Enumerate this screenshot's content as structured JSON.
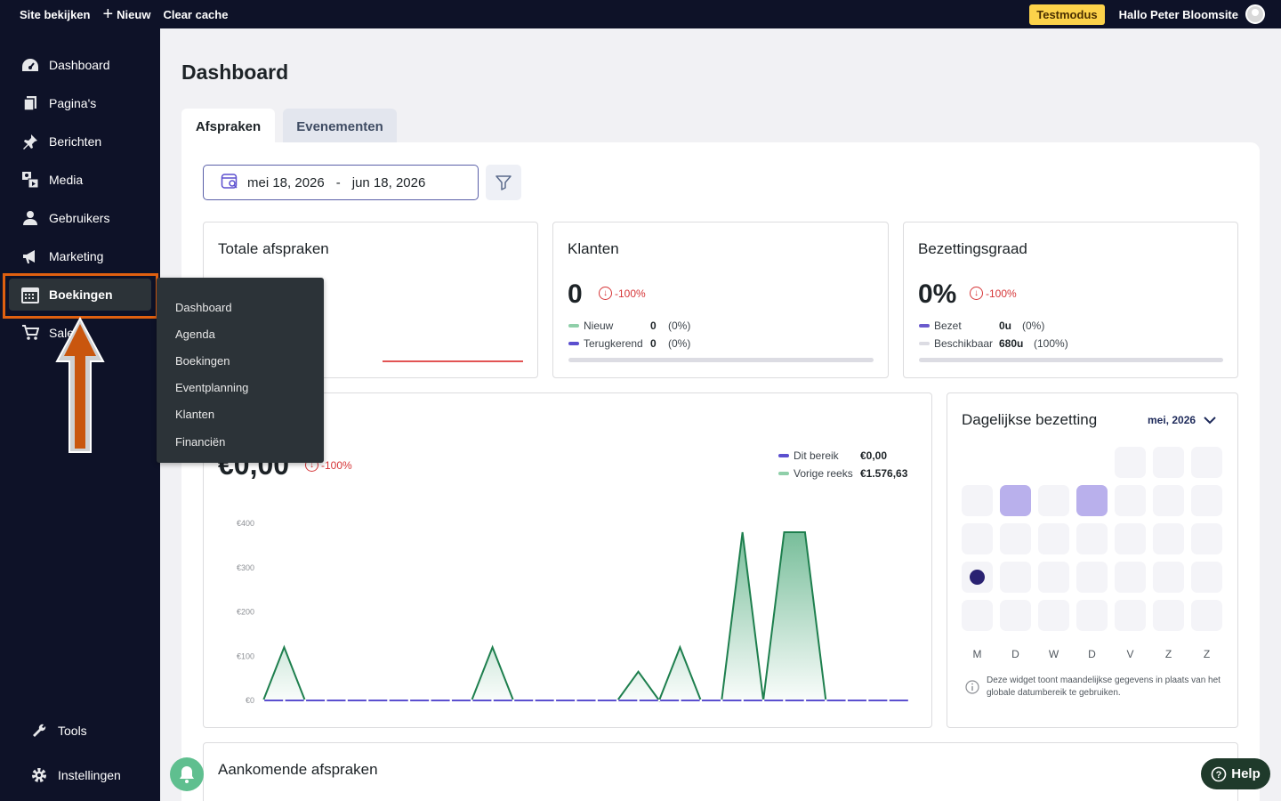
{
  "topbar": {
    "site_label": "Site bekijken",
    "new_label": "Nieuw",
    "cache_label": "Clear cache",
    "testmode_label": "Testmodus",
    "greeting": "Hallo Peter Bloomsite"
  },
  "sidebar": {
    "items": [
      {
        "label": "Dashboard",
        "icon": "dashboard-icon"
      },
      {
        "label": "Pagina's",
        "icon": "pages-icon"
      },
      {
        "label": "Berichten",
        "icon": "pin-icon"
      },
      {
        "label": "Media",
        "icon": "media-icon"
      },
      {
        "label": "Gebruikers",
        "icon": "user-icon"
      },
      {
        "label": "Marketing",
        "icon": "megaphone-icon"
      },
      {
        "label": "Boekingen",
        "icon": "calendar-icon"
      },
      {
        "label": "Sales",
        "icon": "cart-icon"
      }
    ],
    "bottom_items": [
      {
        "label": "Tools",
        "icon": "wrench-icon"
      },
      {
        "label": "Instellingen",
        "icon": "gear-icon"
      }
    ],
    "flyout": [
      "Dashboard",
      "Agenda",
      "Boekingen",
      "Eventplanning",
      "Klanten",
      "Financiën"
    ]
  },
  "main": {
    "title": "Dashboard",
    "tabs": [
      "Afspraken",
      "Evenementen"
    ],
    "date_from": "mei 18, 2026",
    "date_sep": "-",
    "date_to": "jun 18, 2026"
  },
  "cards": {
    "total": {
      "title": "Totale afspraken"
    },
    "klanten": {
      "title": "Klanten",
      "value": "0",
      "delta": "-100%",
      "rows": [
        {
          "label": "Nieuw",
          "value": "0",
          "pct": "(0%)",
          "color": "#8fcfa9"
        },
        {
          "label": "Terugkerend",
          "value": "0",
          "pct": "(0%)",
          "color": "#5b4fcf"
        }
      ]
    },
    "bezetting": {
      "title": "Bezettingsgraad",
      "value": "0%",
      "delta": "-100%",
      "rows": [
        {
          "label": "Bezet",
          "value": "0u",
          "pct": "(0%)",
          "color": "#6a5acd"
        },
        {
          "label": "Beschikbaar",
          "value": "680u",
          "pct": "(100%)",
          "color": "#dcdce3"
        }
      ]
    },
    "revenue": {
      "value": "€0,00",
      "delta": "-100%",
      "legend": [
        {
          "label": "Dit bereik",
          "value": "€0,00",
          "color": "#5b4fcf"
        },
        {
          "label": "Vorige reeks",
          "value": "€1.576,63",
          "color": "#8fcfa9"
        }
      ]
    },
    "daily": {
      "title": "Dagelijkse bezetting",
      "month": "mei, 2026",
      "days": [
        "M",
        "D",
        "W",
        "D",
        "V",
        "Z",
        "Z"
      ],
      "note": "Deze widget toont maandelijkse gegevens in plaats van het globale datumbereik te gebruiken."
    },
    "upcoming": {
      "title": "Aankomende afspraken"
    }
  },
  "help_label": "Help",
  "chart_data": {
    "type": "area",
    "ylim": [
      0,
      400
    ],
    "yticks": [
      "€0",
      "€100",
      "€200",
      "€300",
      "€400"
    ],
    "series": [
      {
        "name": "Dit bereik",
        "color": "#5b4fcf",
        "values": [
          0,
          0,
          0,
          0,
          0,
          0,
          0,
          0,
          0,
          0,
          0,
          0,
          0,
          0,
          0,
          0,
          0,
          0,
          0,
          0,
          0,
          0,
          0,
          0,
          0,
          0,
          0,
          0,
          0,
          0,
          0,
          0
        ]
      },
      {
        "name": "Vorige reeks",
        "color": "#1e7f4e",
        "values": [
          0,
          120,
          0,
          0,
          0,
          0,
          0,
          0,
          0,
          0,
          0,
          120,
          0,
          0,
          0,
          0,
          0,
          0,
          65,
          0,
          120,
          0,
          0,
          380,
          0,
          380,
          380,
          0,
          0,
          0,
          0,
          0
        ]
      }
    ]
  }
}
